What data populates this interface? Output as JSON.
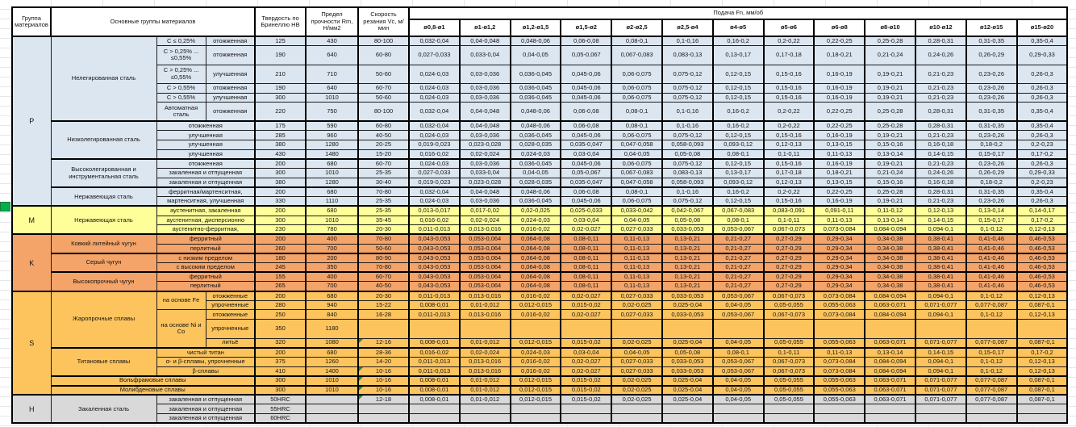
{
  "header": {
    "col_group": "Группа материалов",
    "col_main": "Основные группы материалов",
    "col_hardness": "Твердость по Бринеллю НВ",
    "col_strength": "Предел прочности Rm, Н/мм2",
    "col_speed": "Скорость резания Vc, м/мин",
    "feed_title": "Подача Fn, мм/об",
    "diameters": [
      "ø0,8-ø1",
      "ø1-ø1,2",
      "ø1,2-ø1,5",
      "ø1,5-ø2",
      "ø2-ø2,5",
      "ø2,5-ø4",
      "ø4-ø5",
      "ø5-ø6",
      "ø6-ø8",
      "ø8-ø10",
      "ø10-ø12",
      "ø12-ø15",
      "ø15-ø20"
    ]
  },
  "colors": {
    "groups": {
      "P": "#dce6f1",
      "M": "#ffff99",
      "K": "#f4a469",
      "S": "#fdc45e",
      "H": "#d9d9d9"
    },
    "marker": "#1e8f3e",
    "selection_green": "#00b050",
    "grid_line": "#e4e7eb"
  },
  "feed_patterns": {
    "f1": [
      "0,032-0,04",
      "0,04-0,048",
      "0,048-0,06",
      "0,06-0,08",
      "0,08-0,1",
      "0,1-0,16",
      "0,16-0,2",
      "0,2-0,22",
      "0,22-0,25",
      "0,25-0,28",
      "0,28-0,31",
      "0,31-0,35",
      "0,35-0,4"
    ],
    "f2": [
      "0,027-0,033",
      "0,033-0,04",
      "0,04-0,05",
      "0,05-0,067",
      "0,067-0,083",
      "0,083-0,13",
      "0,13-0,17",
      "0,17-0,18",
      "0,18-0,21",
      "0,21-0,24",
      "0,24-0,26",
      "0,26-0,29",
      "0,29-0,33"
    ],
    "f3": [
      "0,024-0,03",
      "0,03-0,036",
      "0,036-0,045",
      "0,045-0,06",
      "0,06-0,075",
      "0,075-0,12",
      "0,12-0,15",
      "0,15-0,16",
      "0,16-0,19",
      "0,19-0,21",
      "0,21-0,23",
      "0,23-0,26",
      "0,26-0,3"
    ],
    "f4": [
      "0,019-0,023",
      "0,023-0,028",
      "0,028-0,035",
      "0,035-0,047",
      "0,047-0,058",
      "0,058-0,093",
      "0,093-0,12",
      "0,12-0,13",
      "0,13-0,15",
      "0,15-0,16",
      "0,16-0,18",
      "0,18-0,2",
      "0,2-0,23"
    ],
    "f5": [
      "0,016-0,02",
      "0,02-0,024",
      "0,024-0,03",
      "0,03-0,04",
      "0,04-0,05",
      "0,05-0,08",
      "0,08-0,1",
      "0,1-0,11",
      "0,11-0,13",
      "0,13-0,14",
      "0,14-0,15",
      "0,15-0,17",
      "0,17-0,2"
    ],
    "f6": [
      "0,013-0,017",
      "0,017-0,02",
      "0,02-0,025",
      "0,025-0,033",
      "0,033-0,042",
      "0,042-0,067",
      "0,067-0,083",
      "0,083-0,091",
      "0,091-0,11",
      "0,11-0,12",
      "0,12-0,13",
      "0,13-0,14",
      "0,14-0,17"
    ],
    "f7": [
      "0,011-0,013",
      "0,013-0,016",
      "0,016-0,02",
      "0,02-0,027",
      "0,027-0,033",
      "0,033-0,053",
      "0,053-0,067",
      "0,067-0,073",
      "0,073-0,084",
      "0,084-0,094",
      "0,094-0,1",
      "0,1-0,12",
      "0,12-0,13"
    ],
    "f8": [
      "0,043-0,053",
      "0,053-0,064",
      "0,064-0,08",
      "0,08-0,11",
      "0,11-0,13",
      "0,13-0,21",
      "0,21-0,27",
      "0,27-0,29",
      "0,29-0,34",
      "0,34-0,38",
      "0,38-0,41",
      "0,41-0,46",
      "0,46-0,53"
    ],
    "f9": [
      "0,008-0,01",
      "0,01-0,012",
      "0,012-0,015",
      "0,015-0,02",
      "0,02-0,025",
      "0,025-0,04",
      "0,04-0,05",
      "0,05-0,055",
      "0,055-0,063",
      "0,063-0,071",
      "0,071-0,077",
      "0,077-0,087",
      "0,087-0,1"
    ],
    "f0": [
      "",
      "",
      "",
      "",
      "",
      "",
      "",
      "",
      "",
      "",
      "",
      "",
      ""
    ]
  },
  "rows": [
    {
      "g": "P",
      "fp": "f1",
      "cells": [
        {
          "t": "P",
          "rs": 15,
          "k": "glabel"
        },
        {
          "t": "Нелегированная сталь",
          "rs": 6
        },
        {
          "t": "C ≤ 0,25%"
        },
        {
          "t": "отожженная"
        },
        {
          "t": "125"
        },
        {
          "t": "430"
        },
        {
          "t": "80-100"
        }
      ]
    },
    {
      "g": "P",
      "fp": "f2",
      "tall": 1,
      "cells": [
        {
          "t": "C > 0,25% ... ≤0,55%"
        },
        {
          "t": "отожженная"
        },
        {
          "t": "190"
        },
        {
          "t": "640"
        },
        {
          "t": "60-80"
        }
      ]
    },
    {
      "g": "P",
      "fp": "f3",
      "tall": 1,
      "cells": [
        {
          "t": "C > 0,25% ... ≤0,55%"
        },
        {
          "t": "улучшенная"
        },
        {
          "t": "210"
        },
        {
          "t": "710"
        },
        {
          "t": "50-60"
        }
      ]
    },
    {
      "g": "P",
      "fp": "f3",
      "cells": [
        {
          "t": "C > 0,55%"
        },
        {
          "t": "отожженная"
        },
        {
          "t": "190"
        },
        {
          "t": "640"
        },
        {
          "t": "60-70"
        }
      ]
    },
    {
      "g": "P",
      "fp": "f3",
      "cells": [
        {
          "t": "C > 0,55%"
        },
        {
          "t": "улучшенная"
        },
        {
          "t": "300"
        },
        {
          "t": "1010"
        },
        {
          "t": "50-60"
        }
      ]
    },
    {
      "g": "P",
      "fp": "f1",
      "tall": 1,
      "cells": [
        {
          "t": "Автоматная сталь"
        },
        {
          "t": "отожженная"
        },
        {
          "t": "220"
        },
        {
          "t": "750"
        },
        {
          "t": "80-100"
        }
      ]
    },
    {
      "g": "P",
      "fp": "f1",
      "tt": 1,
      "cells": [
        {
          "t": "Низколегированная сталь",
          "rs": 4
        },
        {
          "t": "отожженная",
          "cs": 2
        },
        {
          "t": "175"
        },
        {
          "t": "590"
        },
        {
          "t": "60-80"
        }
      ]
    },
    {
      "g": "P",
      "fp": "f3",
      "cells": [
        {
          "t": "улучшенная",
          "cs": 2
        },
        {
          "t": "285"
        },
        {
          "t": "960"
        },
        {
          "t": "40-50"
        }
      ]
    },
    {
      "g": "P",
      "fp": "f4",
      "cells": [
        {
          "t": "улучшенная",
          "cs": 2
        },
        {
          "t": "380"
        },
        {
          "t": "1280"
        },
        {
          "t": "20-25"
        }
      ]
    },
    {
      "g": "P",
      "fp": "f5",
      "cells": [
        {
          "t": "улучшенная",
          "cs": 2
        },
        {
          "t": "430"
        },
        {
          "t": "1480"
        },
        {
          "t": "15-20"
        }
      ]
    },
    {
      "g": "P",
      "fp": "f3",
      "tt": 1,
      "cells": [
        {
          "t": "Высоколегированная и инструментальная сталь",
          "rs": 3
        },
        {
          "t": "отожженная",
          "cs": 2
        },
        {
          "t": "200"
        },
        {
          "t": "680"
        },
        {
          "t": "60-70"
        }
      ]
    },
    {
      "g": "P",
      "fp": "f2",
      "cells": [
        {
          "t": "закаленная и отпущенная",
          "cs": 2
        },
        {
          "t": "300"
        },
        {
          "t": "1010"
        },
        {
          "t": "25-35"
        }
      ]
    },
    {
      "g": "P",
      "fp": "f4",
      "cells": [
        {
          "t": "закаленная и отпущенная",
          "cs": 2
        },
        {
          "t": "380"
        },
        {
          "t": "1280"
        },
        {
          "t": "30-40"
        }
      ]
    },
    {
      "g": "P",
      "fp": "f1",
      "tt": 1,
      "cells": [
        {
          "t": "Нержавеющая сталь",
          "rs": 2
        },
        {
          "t": "ферритная/мартенситная,",
          "cs": 2
        },
        {
          "t": "200"
        },
        {
          "t": "680"
        },
        {
          "t": "70-80"
        }
      ]
    },
    {
      "g": "P",
      "fp": "f3",
      "cells": [
        {
          "t": "мартенситная, улучшенная",
          "cs": 2
        },
        {
          "t": "330"
        },
        {
          "t": "1110"
        },
        {
          "t": "25-35"
        }
      ]
    },
    {
      "g": "M",
      "fp": "f6",
      "tt": 1,
      "cells": [
        {
          "t": "M",
          "rs": 3,
          "k": "glabel"
        },
        {
          "t": "Нержавеющая сталь",
          "rs": 3
        },
        {
          "t": "аустенитная, закаленная",
          "cs": 2
        },
        {
          "t": "200"
        },
        {
          "t": "680"
        },
        {
          "t": "25-35"
        }
      ]
    },
    {
      "g": "M",
      "fp": "f5",
      "cells": [
        {
          "t": "аустенитная, дисперсионно",
          "cs": 2
        },
        {
          "t": "300"
        },
        {
          "t": "1010"
        },
        {
          "t": "35-45"
        }
      ]
    },
    {
      "g": "M",
      "fp": "f7",
      "cells": [
        {
          "t": "аустенитно-ферритная,",
          "cs": 2
        },
        {
          "t": "230"
        },
        {
          "t": "780"
        },
        {
          "t": "20-30"
        }
      ]
    },
    {
      "g": "K",
      "fp": "f8",
      "tt": 1,
      "cells": [
        {
          "t": "K",
          "rs": 6,
          "k": "glabel"
        },
        {
          "t": "Ковкий литейный чугун",
          "rs": 2
        },
        {
          "t": "ферритный",
          "cs": 2
        },
        {
          "t": "200"
        },
        {
          "t": "400"
        },
        {
          "t": "70-80"
        }
      ]
    },
    {
      "g": "K",
      "fp": "f8",
      "cells": [
        {
          "t": "перлитный",
          "cs": 2
        },
        {
          "t": "260"
        },
        {
          "t": "700"
        },
        {
          "t": "50-60"
        }
      ]
    },
    {
      "g": "K",
      "fp": "f8",
      "tt": 1,
      "cells": [
        {
          "t": "Серый чугун",
          "rs": 2
        },
        {
          "t": "с низким пределом",
          "cs": 2
        },
        {
          "t": "180"
        },
        {
          "t": "200"
        },
        {
          "t": "80-90"
        }
      ]
    },
    {
      "g": "K",
      "fp": "f8",
      "cells": [
        {
          "t": "с высоким пределом",
          "cs": 2
        },
        {
          "t": "245"
        },
        {
          "t": "350"
        },
        {
          "t": "70-80"
        }
      ]
    },
    {
      "g": "K",
      "fp": "f8",
      "tt": 1,
      "cells": [
        {
          "t": "Высокопрочный чугун",
          "rs": 2
        },
        {
          "t": "ферритный",
          "cs": 2
        },
        {
          "t": "155"
        },
        {
          "t": "400"
        },
        {
          "t": "60-70"
        }
      ]
    },
    {
      "g": "K",
      "fp": "f8",
      "cells": [
        {
          "t": "перлитный",
          "cs": 2
        },
        {
          "t": "265"
        },
        {
          "t": "700"
        },
        {
          "t": "40-50"
        }
      ]
    },
    {
      "g": "S",
      "fp": "f7",
      "tt": 1,
      "cells": [
        {
          "t": "S",
          "rs": 10,
          "k": "glabel"
        },
        {
          "t": "Жаропрочные сплавы",
          "rs": 5
        },
        {
          "t": "на основе Fe",
          "rs": 2
        },
        {
          "t": "отожженные"
        },
        {
          "t": "200"
        },
        {
          "t": "680"
        },
        {
          "t": "20-30"
        }
      ]
    },
    {
      "g": "S",
      "fp": "f9",
      "cells": [
        {
          "t": "упрочненные"
        },
        {
          "t": "280"
        },
        {
          "t": "940"
        },
        {
          "t": "15-22"
        }
      ]
    },
    {
      "g": "S",
      "fp": "f7",
      "cells": [
        {
          "t": "на основе Ni и Со",
          "rs": 3
        },
        {
          "t": "отожженные"
        },
        {
          "t": "250"
        },
        {
          "t": "840"
        },
        {
          "t": "16-28"
        }
      ]
    },
    {
      "g": "S",
      "fp": "f0",
      "tall": 1,
      "cells": [
        {
          "t": "упрочненные"
        },
        {
          "t": "350"
        },
        {
          "t": "1180"
        },
        {
          "t": ""
        }
      ]
    },
    {
      "g": "S",
      "fp": "f9",
      "cells": [
        {
          "t": "литьё"
        },
        {
          "t": "320"
        },
        {
          "t": "1080"
        },
        {
          "t": "12-16",
          "m": 1
        }
      ]
    },
    {
      "g": "S",
      "fp": "f5",
      "tt": 1,
      "cells": [
        {
          "t": "Титановые сплавы",
          "rs": 3
        },
        {
          "t": "чистый титан",
          "cs": 2
        },
        {
          "t": "200"
        },
        {
          "t": "680"
        },
        {
          "t": "28-36"
        }
      ]
    },
    {
      "g": "S",
      "fp": "f7",
      "cells": [
        {
          "t": "α- и β-сплавы, упрочненные",
          "cs": 2
        },
        {
          "t": "375"
        },
        {
          "t": "1260"
        },
        {
          "t": "14-20"
        }
      ]
    },
    {
      "g": "S",
      "fp": "f7",
      "cells": [
        {
          "t": "β-сплавы",
          "cs": 2
        },
        {
          "t": "410"
        },
        {
          "t": "1400"
        },
        {
          "t": "10-16",
          "m": 1
        }
      ]
    },
    {
      "g": "S",
      "fp": "f9",
      "tt": 1,
      "cells": [
        {
          "t": "Вольфрамовые сплавы",
          "cs": 3
        },
        {
          "t": "300"
        },
        {
          "t": "1010"
        },
        {
          "t": "10-16",
          "m": 1
        }
      ]
    },
    {
      "g": "S",
      "fp": "f9",
      "tt": 1,
      "cells": [
        {
          "t": "Молибденовые сплавы",
          "cs": 3
        },
        {
          "t": "300"
        },
        {
          "t": "1010"
        },
        {
          "t": "10-16",
          "m": 1
        }
      ]
    },
    {
      "g": "H",
      "fp": "f9",
      "tt": 1,
      "cells": [
        {
          "t": "H",
          "rs": 3,
          "k": "glabel"
        },
        {
          "t": "Закаленная сталь",
          "rs": 3
        },
        {
          "t": "закаленная и отпущенная",
          "cs": 2
        },
        {
          "t": "50HRC"
        },
        {
          "t": ""
        },
        {
          "t": "12-18",
          "m": 1
        }
      ]
    },
    {
      "g": "H",
      "fp": "f0",
      "cells": [
        {
          "t": "закаленная и отпущенная",
          "cs": 2
        },
        {
          "t": "55HRC"
        },
        {
          "t": ""
        },
        {
          "t": ""
        }
      ]
    },
    {
      "g": "H",
      "fp": "f0",
      "cells": [
        {
          "t": "закаленная и отпущенная",
          "cs": 2
        },
        {
          "t": "60HRC"
        },
        {
          "t": ""
        },
        {
          "t": ""
        }
      ]
    }
  ]
}
